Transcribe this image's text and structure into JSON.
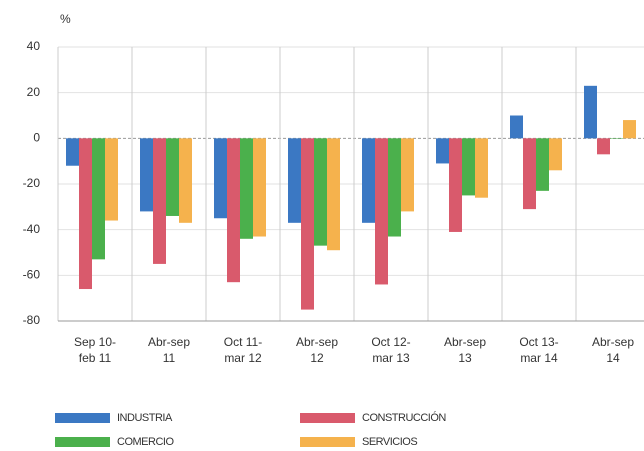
{
  "chart_data": {
    "type": "bar",
    "y_unit": "%",
    "categories": [
      "Sep 10-\nfeb 11",
      "Abr-sep\n11",
      "Oct 11-\nmar 12",
      "Abr-sep\n12",
      "Oct 12-\nmar 13",
      "Abr-sep\n13",
      "Oct 13-\nmar 14",
      "Abr-sep\n14"
    ],
    "series": [
      {
        "name": "INDUSTRIA",
        "color": "#3b78c3",
        "values": [
          -12,
          -32,
          -35,
          -37,
          -37,
          -11,
          10,
          23
        ]
      },
      {
        "name": "CONSTRUCCIÓN",
        "color": "#d95a6c",
        "values": [
          -66,
          -55,
          -63,
          -75,
          -64,
          -41,
          -31,
          -7
        ]
      },
      {
        "name": "COMERCIO",
        "color": "#4bb04c",
        "values": [
          -53,
          -34,
          -44,
          -47,
          -43,
          -25,
          -23,
          0
        ]
      },
      {
        "name": "SERVICIOS",
        "color": "#f5b24d",
        "values": [
          -36,
          -37,
          -43,
          -49,
          -32,
          -26,
          -14,
          8
        ]
      }
    ],
    "ylim": [
      -80,
      40
    ],
    "yticks": [
      -80,
      -60,
      -40,
      -20,
      0,
      20,
      40
    ],
    "grid": true,
    "legend": "bottom"
  }
}
